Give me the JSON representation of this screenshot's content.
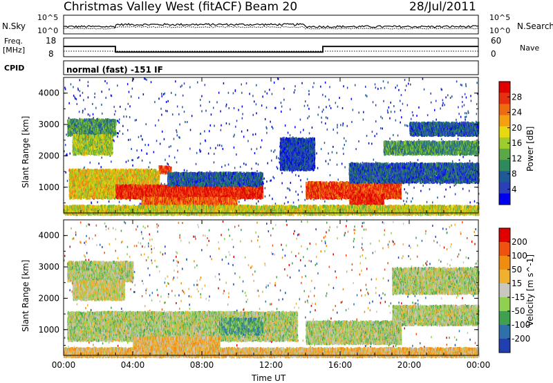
{
  "header": {
    "title": "Christmas Valley West (fitACF)",
    "beam": "Beam 20",
    "date": "28/Jul/2011"
  },
  "noise_panel": {
    "left_label": "N.Sky",
    "right_label": "N.Search",
    "left_ticks": [
      "10^5",
      "10^0"
    ],
    "right_ticks": [
      "10^5",
      "10^0"
    ]
  },
  "freq_panel": {
    "left_label_1": "Freq.",
    "left_label_2": "[MHz]",
    "right_label": "Nave",
    "left_ticks": [
      "18",
      "8"
    ],
    "right_ticks": [
      "60",
      "0"
    ],
    "freq_steps": [
      {
        "start": 0.0,
        "end": 3.0,
        "value": 13.5
      },
      {
        "start": 3.0,
        "end": 15.0,
        "value": 10.5
      },
      {
        "start": 15.0,
        "end": 24.0,
        "value": 13.5
      }
    ]
  },
  "cpid": {
    "label": "CPID",
    "mode": "normal (fast) -151 IF"
  },
  "xaxis": {
    "title": "Time UT",
    "ticks": [
      "00:00",
      "04:00",
      "08:00",
      "12:00",
      "16:00",
      "20:00",
      "00:00"
    ]
  },
  "chart_data": [
    {
      "type": "heatmap",
      "title": "",
      "quantity": "Power",
      "ylabel": "Slant Range [km]",
      "xlabel": "",
      "xlim": [
        0,
        24
      ],
      "ylim": [
        180,
        4500
      ],
      "yticks": [
        "1000",
        "2000",
        "3000",
        "4000"
      ],
      "colorbar_label": "Power [dB]",
      "colorbar_ticks": [
        "28",
        "24",
        "20",
        "16",
        "12",
        "8",
        "4"
      ],
      "colorbar_colors": [
        "#0000ee",
        "#2a3fb8",
        "#1f5a94",
        "#2e8a5c",
        "#5aa848",
        "#9ccd2c",
        "#e7d810",
        "#f4a010",
        "#f06a10",
        "#e83010",
        "#e00000"
      ],
      "regions": [
        {
          "t0": 0.2,
          "t1": 3.0,
          "r0": 2700,
          "r1": 3200,
          "level": 0.35
        },
        {
          "t0": 0.5,
          "t1": 2.8,
          "r0": 2100,
          "r1": 2700,
          "level": 0.5
        },
        {
          "t0": 0.3,
          "t1": 5.5,
          "r0": 700,
          "r1": 1600,
          "level": 0.6
        },
        {
          "t0": 5.5,
          "t1": 6.2,
          "r0": 1500,
          "r1": 1700,
          "level": 0.85
        },
        {
          "t0": 3.0,
          "t1": 11.5,
          "r0": 700,
          "r1": 1100,
          "level": 0.9
        },
        {
          "t0": 4.5,
          "t1": 10.0,
          "r0": 350,
          "r1": 700,
          "level": 0.8
        },
        {
          "t0": 6.0,
          "t1": 11.5,
          "r0": 1100,
          "r1": 1500,
          "level": 0.2
        },
        {
          "t0": 12.5,
          "t1": 14.5,
          "r0": 1600,
          "r1": 2600,
          "level": 0.15
        },
        {
          "t0": 14.0,
          "t1": 19.5,
          "r0": 700,
          "r1": 1200,
          "level": 0.85
        },
        {
          "t0": 16.5,
          "t1": 18.5,
          "r0": 500,
          "r1": 800,
          "level": 0.9
        },
        {
          "t0": 16.5,
          "t1": 24.0,
          "r0": 1200,
          "r1": 1800,
          "level": 0.2
        },
        {
          "t0": 18.5,
          "t1": 24.0,
          "r0": 2100,
          "r1": 2500,
          "level": 0.35
        },
        {
          "t0": 20.0,
          "t1": 24.0,
          "r0": 2700,
          "r1": 3100,
          "level": 0.2
        },
        {
          "t0": 0.0,
          "t1": 24.0,
          "r0": 180,
          "r1": 450,
          "level": 0.55
        }
      ]
    },
    {
      "type": "heatmap",
      "title": "",
      "quantity": "Velocity",
      "ylabel": "Slant Range [km]",
      "xlabel": "Time UT",
      "xlim": [
        0,
        24
      ],
      "ylim": [
        180,
        4500
      ],
      "yticks": [
        "1000",
        "2000",
        "3000",
        "4000"
      ],
      "colorbar_label": "Velocity [m s^-1]",
      "colorbar_ticks": [
        "200",
        "100",
        "50",
        "15",
        "-15",
        "-50",
        "-100",
        "-200"
      ],
      "colorbar_colors": [
        "#2040b0",
        "#3070a8",
        "#40a050",
        "#90d050",
        "#c8c8c0",
        "#f0b030",
        "#f08c10",
        "#f05010",
        "#e00000"
      ],
      "regions": [
        {
          "t0": 0.2,
          "t1": 4.0,
          "r0": 2600,
          "r1": 3200,
          "level": 0.45
        },
        {
          "t0": 0.5,
          "t1": 3.5,
          "r0": 2000,
          "r1": 2600,
          "level": 0.5
        },
        {
          "t0": 0.2,
          "t1": 13.5,
          "r0": 700,
          "r1": 1600,
          "level": 0.45
        },
        {
          "t0": 4.0,
          "t1": 9.0,
          "r0": 400,
          "r1": 800,
          "level": 0.6
        },
        {
          "t0": 9.0,
          "t1": 11.5,
          "r0": 900,
          "r1": 1400,
          "level": 0.3
        },
        {
          "t0": 14.0,
          "t1": 19.5,
          "r0": 600,
          "r1": 1300,
          "level": 0.45
        },
        {
          "t0": 19.0,
          "t1": 24.0,
          "r0": 1200,
          "r1": 1800,
          "level": 0.45
        },
        {
          "t0": 19.0,
          "t1": 24.0,
          "r0": 2200,
          "r1": 3000,
          "level": 0.45
        },
        {
          "t0": 0.0,
          "t1": 24.0,
          "r0": 180,
          "r1": 450,
          "level": 0.6
        }
      ]
    }
  ]
}
